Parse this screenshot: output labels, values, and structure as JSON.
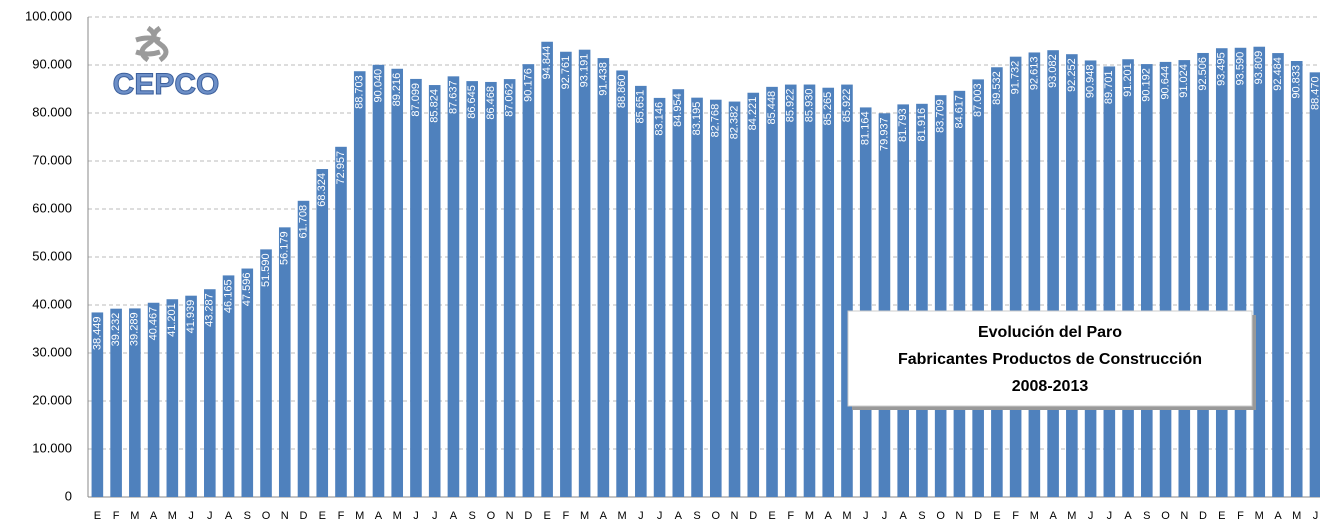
{
  "chart_data": {
    "type": "bar",
    "categories": [
      "E",
      "F",
      "M",
      "A",
      "M",
      "J",
      "J",
      "A",
      "S",
      "O",
      "N",
      "D",
      "E",
      "F",
      "M",
      "A",
      "M",
      "J",
      "J",
      "A",
      "S",
      "O",
      "N",
      "D",
      "E",
      "F",
      "M",
      "A",
      "M",
      "J",
      "J",
      "A",
      "S",
      "O",
      "N",
      "D",
      "E",
      "F",
      "M",
      "A",
      "M",
      "J",
      "J",
      "A",
      "S",
      "O",
      "N",
      "D",
      "E",
      "F",
      "M",
      "A",
      "M",
      "J",
      "J",
      "A",
      "S",
      "O",
      "N",
      "D",
      "E",
      "F",
      "M",
      "A",
      "M",
      "J"
    ],
    "values": [
      38449,
      39232,
      39289,
      40467,
      41201,
      41939,
      43287,
      46165,
      47596,
      51590,
      56179,
      61708,
      68324,
      72957,
      88703,
      90040,
      89216,
      87099,
      85824,
      87637,
      86645,
      86468,
      87062,
      90176,
      94844,
      92761,
      93191,
      91438,
      88860,
      85651,
      83146,
      84954,
      83195,
      82768,
      82382,
      84221,
      85448,
      85922,
      85930,
      85265,
      85922,
      81164,
      79937,
      81793,
      81916,
      83709,
      84617,
      87003,
      89532,
      91732,
      92613,
      93082,
      92252,
      90948,
      89701,
      91201,
      90192,
      90644,
      91024,
      92506,
      93495,
      93590,
      93809,
      92484,
      90833,
      88470
    ],
    "value_labels": [
      "38.449",
      "39.232",
      "39.289",
      "40.467",
      "41.201",
      "41.939",
      "43.287",
      "46.165",
      "47.596",
      "51.590",
      "56.179",
      "61.708",
      "68.324",
      "72.957",
      "88.703",
      "90.040",
      "89.216",
      "87.099",
      "85.824",
      "87.637",
      "86.645",
      "86.468",
      "87.062",
      "90.176",
      "94.844",
      "92.761",
      "93.191",
      "91.438",
      "88.860",
      "85.651",
      "83.146",
      "84.954",
      "83.195",
      "82.768",
      "82.382",
      "84.221",
      "85.448",
      "85.922",
      "85.930",
      "85.265",
      "85.922",
      "81.164",
      "79.937",
      "81.793",
      "81.916",
      "83.709",
      "84.617",
      "87.003",
      "89.532",
      "91.732",
      "92.613",
      "93.082",
      "92.252",
      "90.948",
      "89.701",
      "91.201",
      "90.192",
      "90.644",
      "91.024",
      "92.506",
      "93.495",
      "93.590",
      "93.809",
      "92.484",
      "90.833",
      "88.470"
    ],
    "color": "#4f81bd",
    "ylim": [
      0,
      100000
    ],
    "yticks": [
      0,
      {
        "value": 10000,
        "label": "10.000"
      },
      {
        "value": 20000,
        "label": "20.000"
      },
      {
        "value": 30000,
        "label": "30.000"
      },
      {
        "value": 40000,
        "label": "40.000"
      },
      {
        "value": 50000,
        "label": "50.000"
      },
      {
        "value": 60000,
        "label": "60.000"
      },
      {
        "value": 70000,
        "label": "70.000"
      },
      {
        "value": 80000,
        "label": "80.000"
      },
      {
        "value": 90000,
        "label": "90.000"
      },
      {
        "value": 100000,
        "label": "100.000"
      }
    ],
    "grid": true,
    "annotation": [
      "Evolución del Paro",
      "Fabricantes Productos de Construcción",
      "2008-2013"
    ],
    "logo": "CEPCO"
  }
}
